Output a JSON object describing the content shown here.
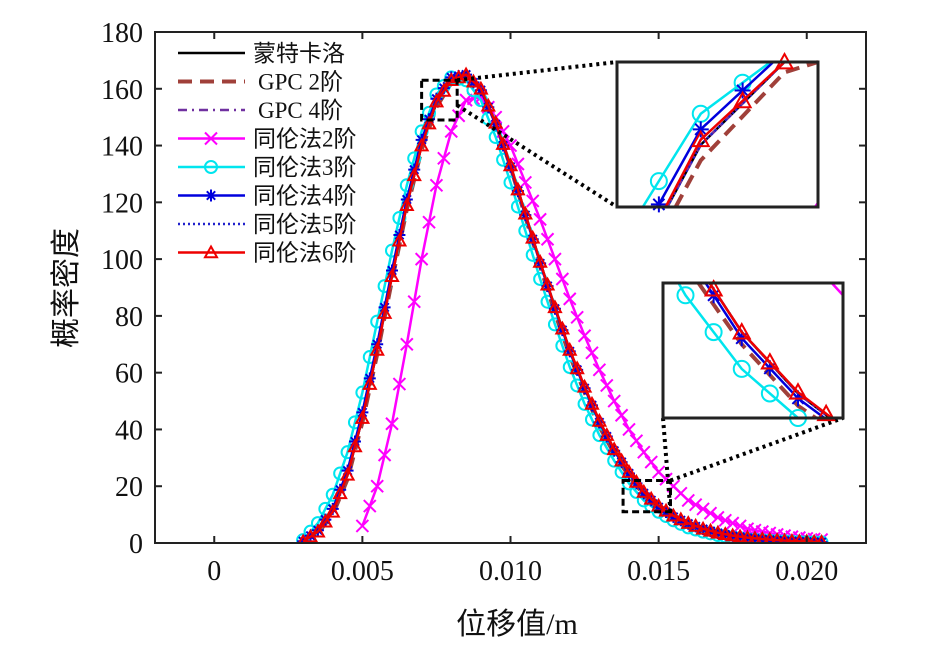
{
  "chart_data": {
    "type": "line",
    "title": "",
    "xlabel": "位移值/m",
    "ylabel": "概率密度",
    "xlim": [
      -0.002,
      0.022
    ],
    "ylim": [
      0,
      180
    ],
    "xticks": [
      0,
      0.005,
      0.01,
      0.015,
      0.02
    ],
    "xtick_labels": [
      "0",
      "0.005",
      "0.010",
      "0.015",
      "0.020"
    ],
    "yticks": [
      0,
      20,
      40,
      60,
      80,
      100,
      120,
      140,
      160,
      180
    ],
    "ytick_labels": [
      "0",
      "20",
      "40",
      "60",
      "80",
      "100",
      "120",
      "140",
      "160",
      "180"
    ],
    "grid": false,
    "legend_position": "top-left",
    "x": [
      0.003,
      0.0035,
      0.004,
      0.0045,
      0.005,
      0.0055,
      0.006,
      0.0065,
      0.007,
      0.0075,
      0.008,
      0.0085,
      0.009,
      0.0095,
      0.01,
      0.0105,
      0.011,
      0.0115,
      0.012,
      0.0125,
      0.013,
      0.0135,
      0.014,
      0.0145,
      0.015,
      0.0155,
      0.016,
      0.0165,
      0.017,
      0.0175,
      0.018,
      0.0185,
      0.019,
      0.0195,
      0.02,
      0.0205
    ],
    "series": [
      {
        "name": "蒙特卡洛",
        "color": "#000000",
        "style": "solid",
        "marker": "none",
        "values": [
          0.5,
          4,
          11,
          24,
          44,
          68,
          94,
          119,
          140,
          155,
          163,
          165,
          160,
          148,
          133,
          116,
          99,
          83,
          68,
          55,
          43,
          33,
          25,
          18,
          13,
          9.5,
          7,
          5,
          3.6,
          2.6,
          1.9,
          1.4,
          1.0,
          0.7,
          0.5,
          0.35
        ]
      },
      {
        "name": "GPC 2阶",
        "color": "#a0403a",
        "style": "dash",
        "marker": "none",
        "values": [
          0.4,
          3.5,
          10,
          22.5,
          42.5,
          66.5,
          92.5,
          117.5,
          138.5,
          153.5,
          162,
          164.5,
          160,
          148,
          132.5,
          115,
          97.5,
          81,
          66,
          53,
          41,
          31.5,
          23.5,
          17,
          12,
          8.8,
          6.4,
          4.6,
          3.3,
          2.4,
          1.7,
          1.2,
          0.9,
          0.6,
          0.45,
          0.3
        ]
      },
      {
        "name": "GPC 4阶",
        "color": "#7030a0",
        "style": "dashdot",
        "marker": "none",
        "values": [
          0.5,
          4,
          11,
          24,
          44,
          68,
          94,
          119,
          140,
          155,
          163,
          165,
          160,
          148,
          133,
          116,
          99,
          83,
          68,
          55,
          43,
          33,
          25,
          18,
          13,
          9.5,
          7,
          5,
          3.6,
          2.6,
          1.9,
          1.4,
          1.0,
          0.7,
          0.5,
          0.35
        ]
      },
      {
        "name": "同伦法2阶",
        "color": "#ff00ff",
        "style": "solid",
        "marker": "x",
        "values": [
          null,
          null,
          null,
          null,
          6,
          20,
          42,
          70,
          100,
          126,
          145,
          156,
          157,
          150,
          140,
          127,
          114,
          100,
          86,
          73,
          61,
          50,
          40,
          32,
          25,
          20,
          15,
          12,
          9,
          7,
          5,
          4,
          3,
          2.2,
          1.6,
          1.2
        ]
      },
      {
        "name": "同伦法3阶",
        "color": "#00e5ee",
        "style": "solid",
        "marker": "o",
        "values": [
          1,
          7,
          17,
          32,
          53,
          78,
          103,
          126,
          145,
          158,
          164,
          163,
          156,
          143,
          127,
          110,
          93,
          77,
          62,
          49,
          38,
          29,
          21,
          15,
          11,
          8,
          5.5,
          4,
          2.8,
          2,
          1.4,
          1,
          0.7,
          0.5,
          0.3,
          0.2
        ]
      },
      {
        "name": "同伦法4阶",
        "color": "#0000dd",
        "style": "solid",
        "marker": "*",
        "values": [
          0.6,
          4.5,
          12,
          25.5,
          46,
          70,
          96,
          121,
          142,
          156.5,
          164,
          165,
          159.5,
          147.5,
          132.5,
          115.5,
          98.5,
          82.5,
          67.5,
          54.5,
          42.5,
          32.5,
          24.5,
          17.5,
          12.6,
          9.2,
          6.8,
          4.9,
          3.5,
          2.5,
          1.8,
          1.3,
          0.95,
          0.65,
          0.45,
          0.3
        ]
      },
      {
        "name": "同伦法5阶",
        "color": "#2020cc",
        "style": "dot",
        "marker": "none",
        "values": [
          0.5,
          4,
          11,
          24,
          44,
          68,
          94,
          119,
          140,
          155,
          163,
          165,
          160,
          148,
          133,
          116,
          99,
          83,
          68,
          55,
          43,
          33,
          25,
          18,
          13,
          9.5,
          7,
          5,
          3.6,
          2.6,
          1.9,
          1.4,
          1.0,
          0.7,
          0.5,
          0.35
        ]
      },
      {
        "name": "同伦法6阶",
        "color": "#ee0000",
        "style": "solid",
        "marker": "^",
        "values": [
          0.5,
          4,
          11,
          24,
          44,
          68,
          94,
          119,
          140,
          155.5,
          163,
          165,
          160,
          148,
          133,
          116,
          99,
          83,
          68,
          55,
          43,
          33,
          25,
          18,
          13.1,
          9.6,
          7,
          5,
          3.6,
          2.6,
          1.9,
          1.4,
          1.0,
          0.7,
          0.5,
          0.35
        ]
      }
    ],
    "insets": [
      {
        "xlim": [
          0.007,
          0.0082
        ],
        "ylim": [
          149,
          163
        ]
      },
      {
        "xlim": [
          0.0138,
          0.0154
        ],
        "ylim": [
          11,
          22
        ]
      }
    ]
  }
}
